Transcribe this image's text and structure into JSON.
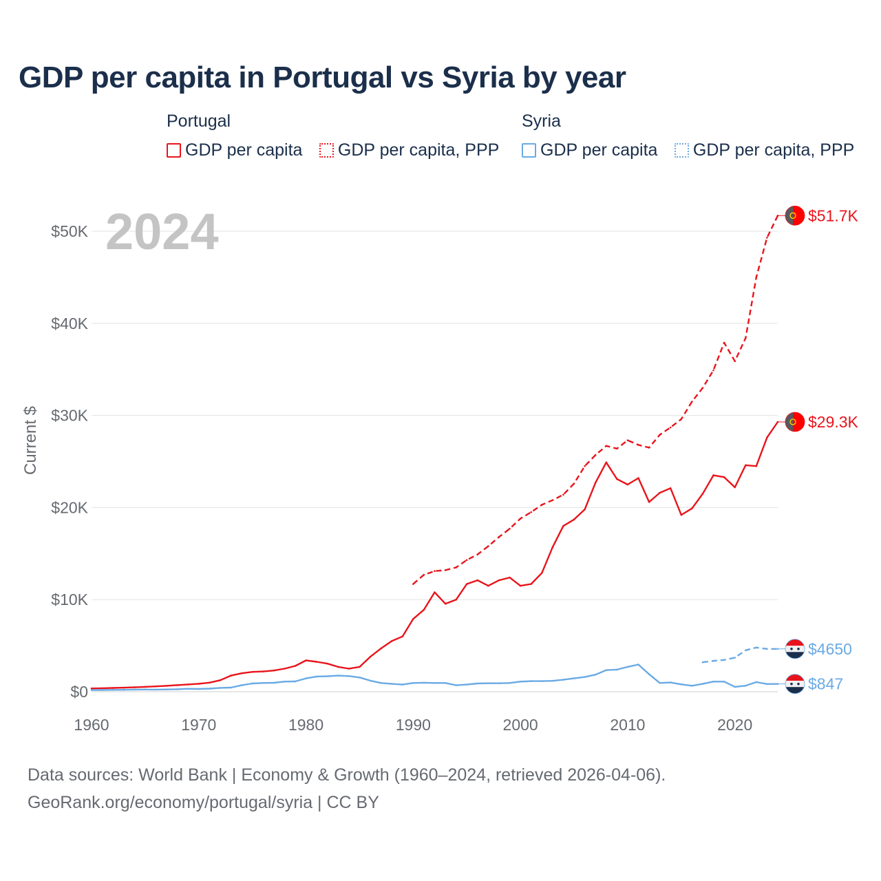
{
  "title": "GDP per capita in Portugal vs Syria by year",
  "legend": {
    "groups": [
      {
        "country": "Portugal",
        "items": [
          {
            "label": "GDP per capita",
            "color": "#e8141b",
            "style": "solid"
          },
          {
            "label": "GDP per capita, PPP",
            "color": "#e8141b",
            "style": "dotted"
          }
        ]
      },
      {
        "country": "Syria",
        "items": [
          {
            "label": "GDP per capita",
            "color": "#6aaae4",
            "style": "solid"
          },
          {
            "label": "GDP per capita, PPP",
            "color": "#6aaae4",
            "style": "dotted"
          }
        ]
      }
    ]
  },
  "chart_data": {
    "type": "line",
    "title": "GDP per capita in Portugal vs Syria by year",
    "ylabel": "Current $",
    "xlabel": "",
    "year_label": "2024",
    "xlim": [
      1960,
      2024
    ],
    "ylim": [
      0,
      52000
    ],
    "x_ticks": [
      {
        "value": 1960,
        "label": "1960"
      },
      {
        "value": 1970,
        "label": "1970"
      },
      {
        "value": 1980,
        "label": "1980"
      },
      {
        "value": 1990,
        "label": "1990"
      },
      {
        "value": 2000,
        "label": "2000"
      },
      {
        "value": 2010,
        "label": "2010"
      },
      {
        "value": 2020,
        "label": "2020"
      }
    ],
    "y_ticks": [
      {
        "value": 0,
        "label": "$0"
      },
      {
        "value": 10000,
        "label": "$10K"
      },
      {
        "value": 20000,
        "label": "$20K"
      },
      {
        "value": 30000,
        "label": "$30K"
      },
      {
        "value": 40000,
        "label": "$40K"
      },
      {
        "value": 50000,
        "label": "$50K"
      }
    ],
    "series": [
      {
        "name": "Portugal GDP per capita",
        "color": "#e8141b",
        "dash": "solid",
        "end_label": "$29.3K",
        "flag": "portugal",
        "points": [
          [
            1960,
            360
          ],
          [
            1961,
            380
          ],
          [
            1962,
            410
          ],
          [
            1963,
            440
          ],
          [
            1964,
            480
          ],
          [
            1965,
            530
          ],
          [
            1966,
            580
          ],
          [
            1967,
            640
          ],
          [
            1968,
            720
          ],
          [
            1969,
            790
          ],
          [
            1970,
            870
          ],
          [
            1971,
            990
          ],
          [
            1972,
            1250
          ],
          [
            1973,
            1750
          ],
          [
            1974,
            2000
          ],
          [
            1975,
            2150
          ],
          [
            1976,
            2200
          ],
          [
            1977,
            2300
          ],
          [
            1978,
            2500
          ],
          [
            1979,
            2800
          ],
          [
            1980,
            3400
          ],
          [
            1981,
            3250
          ],
          [
            1982,
            3050
          ],
          [
            1983,
            2700
          ],
          [
            1984,
            2500
          ],
          [
            1985,
            2700
          ],
          [
            1986,
            3800
          ],
          [
            1987,
            4700
          ],
          [
            1988,
            5500
          ],
          [
            1989,
            6000
          ],
          [
            1990,
            7900
          ],
          [
            1991,
            8900
          ],
          [
            1992,
            10800
          ],
          [
            1993,
            9550
          ],
          [
            1994,
            10000
          ],
          [
            1995,
            11700
          ],
          [
            1996,
            12100
          ],
          [
            1997,
            11500
          ],
          [
            1998,
            12100
          ],
          [
            1999,
            12400
          ],
          [
            2000,
            11500
          ],
          [
            2001,
            11700
          ],
          [
            2002,
            12900
          ],
          [
            2003,
            15700
          ],
          [
            2004,
            18000
          ],
          [
            2005,
            18700
          ],
          [
            2006,
            19800
          ],
          [
            2007,
            22700
          ],
          [
            2008,
            24900
          ],
          [
            2009,
            23100
          ],
          [
            2010,
            22500
          ],
          [
            2011,
            23200
          ],
          [
            2012,
            20600
          ],
          [
            2013,
            21600
          ],
          [
            2014,
            22100
          ],
          [
            2015,
            19200
          ],
          [
            2016,
            19900
          ],
          [
            2017,
            21500
          ],
          [
            2018,
            23500
          ],
          [
            2019,
            23300
          ],
          [
            2020,
            22200
          ],
          [
            2021,
            24600
          ],
          [
            2022,
            24500
          ],
          [
            2023,
            27600
          ],
          [
            2024,
            29300
          ]
        ]
      },
      {
        "name": "Portugal GDP per capita, PPP",
        "color": "#e8141b",
        "dash": "dashed",
        "end_label": "$51.7K",
        "flag": "portugal",
        "points": [
          [
            1990,
            11700
          ],
          [
            1991,
            12700
          ],
          [
            1992,
            13100
          ],
          [
            1993,
            13200
          ],
          [
            1994,
            13500
          ],
          [
            1995,
            14300
          ],
          [
            1996,
            14900
          ],
          [
            1997,
            15800
          ],
          [
            1998,
            16800
          ],
          [
            1999,
            17700
          ],
          [
            2000,
            18800
          ],
          [
            2001,
            19500
          ],
          [
            2002,
            20300
          ],
          [
            2003,
            20800
          ],
          [
            2004,
            21400
          ],
          [
            2005,
            22600
          ],
          [
            2006,
            24500
          ],
          [
            2007,
            25700
          ],
          [
            2008,
            26700
          ],
          [
            2009,
            26400
          ],
          [
            2010,
            27300
          ],
          [
            2011,
            26800
          ],
          [
            2012,
            26500
          ],
          [
            2013,
            27900
          ],
          [
            2014,
            28700
          ],
          [
            2015,
            29600
          ],
          [
            2016,
            31500
          ],
          [
            2017,
            33000
          ],
          [
            2018,
            34900
          ],
          [
            2019,
            37900
          ],
          [
            2020,
            35900
          ],
          [
            2021,
            38400
          ],
          [
            2022,
            45000
          ],
          [
            2023,
            49300
          ],
          [
            2024,
            51700
          ]
        ]
      },
      {
        "name": "Syria GDP per capita",
        "color": "#6aaae4",
        "dash": "solid",
        "end_label": "$847",
        "flag": "syria",
        "points": [
          [
            1960,
            180
          ],
          [
            1961,
            190
          ],
          [
            1962,
            200
          ],
          [
            1963,
            210
          ],
          [
            1964,
            230
          ],
          [
            1965,
            240
          ],
          [
            1966,
            230
          ],
          [
            1967,
            250
          ],
          [
            1968,
            270
          ],
          [
            1969,
            320
          ],
          [
            1970,
            300
          ],
          [
            1971,
            340
          ],
          [
            1972,
            420
          ],
          [
            1973,
            450
          ],
          [
            1974,
            700
          ],
          [
            1975,
            900
          ],
          [
            1976,
            950
          ],
          [
            1977,
            970
          ],
          [
            1978,
            1100
          ],
          [
            1979,
            1120
          ],
          [
            1980,
            1450
          ],
          [
            1981,
            1650
          ],
          [
            1982,
            1680
          ],
          [
            1983,
            1750
          ],
          [
            1984,
            1700
          ],
          [
            1985,
            1550
          ],
          [
            1986,
            1200
          ],
          [
            1987,
            950
          ],
          [
            1988,
            850
          ],
          [
            1989,
            780
          ],
          [
            1990,
            950
          ],
          [
            1991,
            980
          ],
          [
            1992,
            950
          ],
          [
            1993,
            950
          ],
          [
            1994,
            700
          ],
          [
            1995,
            780
          ],
          [
            1996,
            900
          ],
          [
            1997,
            920
          ],
          [
            1998,
            920
          ],
          [
            1999,
            950
          ],
          [
            2000,
            1100
          ],
          [
            2001,
            1150
          ],
          [
            2002,
            1150
          ],
          [
            2003,
            1180
          ],
          [
            2004,
            1300
          ],
          [
            2005,
            1450
          ],
          [
            2006,
            1600
          ],
          [
            2007,
            1850
          ],
          [
            2008,
            2350
          ],
          [
            2009,
            2400
          ],
          [
            2010,
            2700
          ],
          [
            2011,
            2950
          ],
          [
            2012,
            1900
          ],
          [
            2013,
            950
          ],
          [
            2014,
            1000
          ],
          [
            2015,
            800
          ],
          [
            2016,
            650
          ],
          [
            2017,
            850
          ],
          [
            2018,
            1100
          ],
          [
            2019,
            1100
          ],
          [
            2020,
            530
          ],
          [
            2021,
            650
          ],
          [
            2022,
            1050
          ],
          [
            2023,
            840
          ],
          [
            2024,
            847
          ]
        ]
      },
      {
        "name": "Syria GDP per capita, PPP",
        "color": "#6aaae4",
        "dash": "dashed",
        "end_label": "$4650",
        "flag": "syria",
        "points": [
          [
            2017,
            3200
          ],
          [
            2018,
            3350
          ],
          [
            2019,
            3450
          ],
          [
            2020,
            3700
          ],
          [
            2021,
            4500
          ],
          [
            2022,
            4800
          ],
          [
            2023,
            4650
          ],
          [
            2024,
            4650
          ]
        ]
      }
    ]
  },
  "footer": {
    "line1": "Data sources: World Bank | Economy & Growth (1960–2024, retrieved 2026-04-06).",
    "line2": "GeoRank.org/economy/portugal/syria | CC BY"
  }
}
